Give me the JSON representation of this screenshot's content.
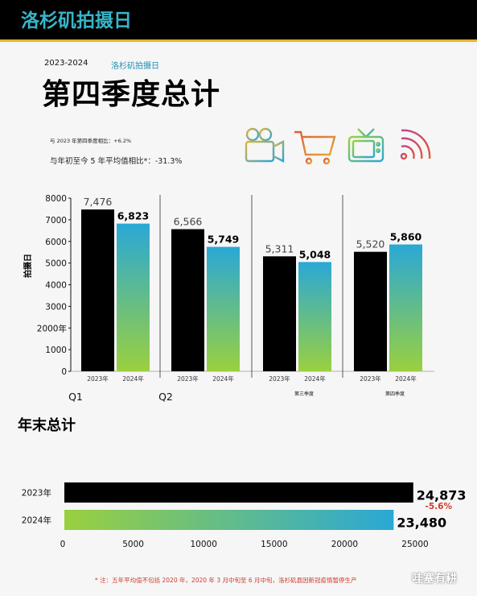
{
  "header": {
    "title": "洛杉矶拍摄日"
  },
  "subtitle": {
    "season": "2023-2024",
    "source": "洛杉矶拍摄日"
  },
  "main_title": "第四季度总计",
  "notes": {
    "line1": "与 2023 年第四季度相比：+6.2%",
    "line2": "与年初至今 5 年平均值相比*：-31.3%"
  },
  "icons": [
    "film-camera-icon",
    "shopping-cart-icon",
    "television-icon",
    "wifi-signal-icon"
  ],
  "colors": {
    "bar_2023": "#000000",
    "gradient_top": "#2aa8d6",
    "gradient_bottom": "#9ad03f",
    "negative": "#d23a2a"
  },
  "chart_data": [
    {
      "type": "bar",
      "ylabel": "拍摄日",
      "ylim": [
        0,
        8000
      ],
      "yticks": [
        "0",
        "1000",
        "2000年",
        "3000",
        "4000",
        "5000",
        "6000",
        "7000",
        "8000"
      ],
      "groups": [
        {
          "label": "Q1",
          "bars": [
            {
              "label": "2023年",
              "value": 7476,
              "display": "7,476"
            },
            {
              "label": "2024年",
              "value": 6823,
              "display": "6,823"
            }
          ]
        },
        {
          "label": "Q2",
          "bars": [
            {
              "label": "2023年",
              "value": 6566,
              "display": "6,566"
            },
            {
              "label": "2024年",
              "value": 5749,
              "display": "5,749"
            }
          ]
        },
        {
          "label": "第三季度",
          "bars": [
            {
              "label": "2023年",
              "value": 5311,
              "display": "5,311"
            },
            {
              "label": "2024年",
              "value": 5048,
              "display": "5,048"
            }
          ]
        },
        {
          "label": "第四季度",
          "bars": [
            {
              "label": "2023年",
              "value": 5520,
              "display": "5,520"
            },
            {
              "label": "2024年",
              "value": 5860,
              "display": "5,860"
            }
          ]
        }
      ]
    },
    {
      "type": "bar",
      "orientation": "horizontal",
      "title": "年末总计",
      "xlim": [
        0,
        25000
      ],
      "xticks": [
        "0",
        "5000",
        "10000",
        "15000",
        "20000",
        "25000"
      ],
      "bars": [
        {
          "label": "2023年",
          "value": 24873,
          "display": "24,873"
        },
        {
          "label": "2024年",
          "value": 23480,
          "display": "23,480"
        }
      ],
      "change": "-5.6%"
    }
  ],
  "footnote": "* 注：五年平均值不包括 2020 年，2020 年 3 月中旬至 6 月中旬，洛杉矶县因新冠疫情暂停生产",
  "watermark": "哇塞有耕"
}
